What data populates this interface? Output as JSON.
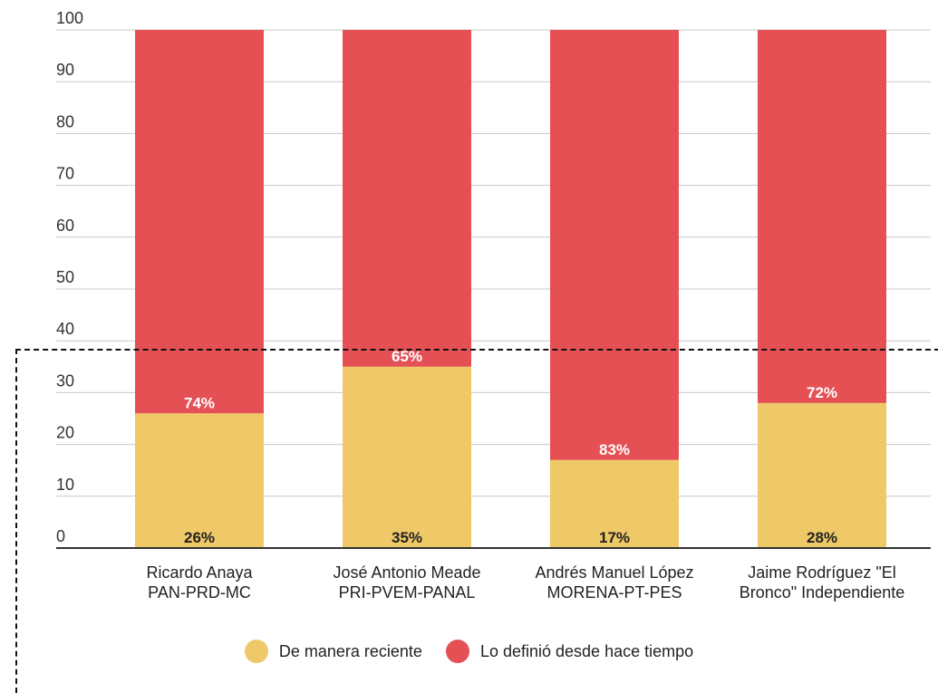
{
  "chart_data": {
    "type": "bar",
    "stacked": true,
    "categories": [
      [
        "Ricardo Anaya",
        "PAN-PRD-MC"
      ],
      [
        "José Antonio Meade",
        "PRI-PVEM-PANAL"
      ],
      [
        "Andrés Manuel López",
        "MORENA-PT-PES"
      ],
      [
        "Jaime Rodríguez \"El",
        "Bronco\" Independiente"
      ]
    ],
    "series": [
      {
        "name": "De manera reciente",
        "color": "#EFC867",
        "values": [
          26,
          35,
          17,
          28
        ],
        "labels": [
          "26%",
          "35%",
          "17%",
          "28%"
        ]
      },
      {
        "name": "Lo definió desde hace tiempo",
        "color": "#E55055",
        "values": [
          74,
          65,
          83,
          72
        ],
        "labels": [
          "74%",
          "65%",
          "83%",
          "72%"
        ]
      }
    ],
    "ylim": [
      0,
      100
    ],
    "yticks": [
      "0",
      "10",
      "20",
      "30",
      "40",
      "50",
      "60",
      "70",
      "80",
      "90",
      "100"
    ],
    "grid": true,
    "legend_position": "bottom"
  },
  "legend": [
    {
      "label": "De manera reciente",
      "color": "#EFC867"
    },
    {
      "label": "Lo definió desde hace tiempo",
      "color": "#E55055"
    }
  ]
}
